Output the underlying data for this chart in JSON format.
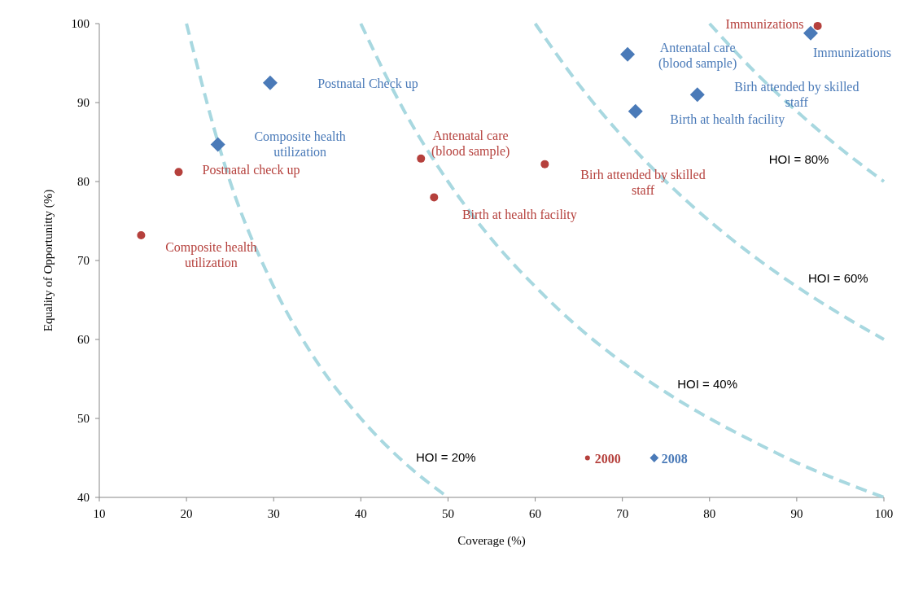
{
  "chart_data": {
    "type": "scatter",
    "xlabel": "Coverage (%)",
    "ylabel": "Equality of Opportunitty (%)",
    "xlim": [
      10,
      100
    ],
    "ylim": [
      40,
      100
    ],
    "xticks": [
      10,
      20,
      30,
      40,
      50,
      60,
      70,
      80,
      90,
      100
    ],
    "yticks": [
      40,
      50,
      60,
      70,
      80,
      90,
      100
    ],
    "grid": false,
    "legend": "bottom",
    "series": [
      {
        "type": "line",
        "name": "HOI = 20%",
        "color": "#a8d8e0",
        "line_style": "dashed",
        "marker": "none",
        "x": [
          20,
          25,
          30,
          35,
          40,
          45,
          50
        ],
        "values": [
          100,
          80,
          66.7,
          57.1,
          50,
          44.4,
          40
        ]
      },
      {
        "type": "line",
        "name": "HOI = 40%",
        "color": "#a8d8e0",
        "line_style": "dashed",
        "marker": "none",
        "x": [
          40,
          45,
          50,
          55,
          60,
          65,
          70,
          75,
          80,
          85,
          90,
          95,
          100
        ],
        "values": [
          100,
          88.9,
          80,
          72.7,
          66.7,
          61.5,
          57.1,
          53.3,
          50,
          47.1,
          44.4,
          42.1,
          40
        ]
      },
      {
        "type": "line",
        "name": "HOI = 60%",
        "color": "#a8d8e0",
        "line_style": "dashed",
        "marker": "none",
        "x": [
          60,
          65,
          70,
          75,
          80,
          85,
          90,
          95,
          100
        ],
        "values": [
          100,
          92.3,
          85.7,
          80,
          75,
          70.6,
          66.7,
          63.2,
          60
        ]
      },
      {
        "type": "line",
        "name": "HOI = 80%",
        "color": "#a8d8e0",
        "line_style": "dashed",
        "marker": "none",
        "x": [
          80,
          85,
          90,
          95,
          100
        ],
        "values": [
          100,
          94.1,
          88.9,
          84.2,
          80
        ]
      },
      {
        "name": "2000",
        "color": "#b5403c",
        "marker": "circle",
        "x": [
          92.4,
          46.9,
          61.1,
          48.4,
          19.1,
          14.8
        ],
        "values": [
          99.7,
          82.9,
          82.2,
          78.0,
          81.2,
          73.2
        ]
      },
      {
        "name": "2008",
        "color": "#4a7ab8",
        "marker": "diamond",
        "x": [
          91.6,
          70.6,
          78.6,
          71.5,
          29.6,
          23.6
        ],
        "values": [
          98.8,
          96.1,
          91.0,
          88.9,
          92.5,
          84.7
        ]
      }
    ],
    "annotations": [
      {
        "text": "Immunizations",
        "x": 92.4,
        "y": 99.7
      },
      {
        "text": "Antenatal care\n(blood sample)",
        "x": 46.9,
        "y": 82.9
      },
      "Birh attended  by skilled\nstaff",
      {
        "text": "Birth at health facility",
        "x": 48.4,
        "y": 78.0
      },
      {
        "text": "Postnatal check up",
        "x": 19.1,
        "y": 81.2
      },
      {
        "text": "Composite health\nutilization",
        "x": 14.8,
        "y": 73.2
      },
      {
        "text": "Immunizations",
        "x": 91.6,
        "y": 98.8
      },
      {
        "text": "Antenatal care\n(blood sample)",
        "x": 70.6,
        "y": 96.1
      },
      {
        "text": "Birh attended  by skilled\nstaff",
        "x": 78.6,
        "y": 91.0
      },
      {
        "text": "Birth at health facility",
        "x": 71.5,
        "y": 88.9
      },
      "Postnatal Check up",
      {
        "text": "Composite health\nutilization",
        "x": 23.6,
        "y": 84.7
      }
    ]
  }
}
